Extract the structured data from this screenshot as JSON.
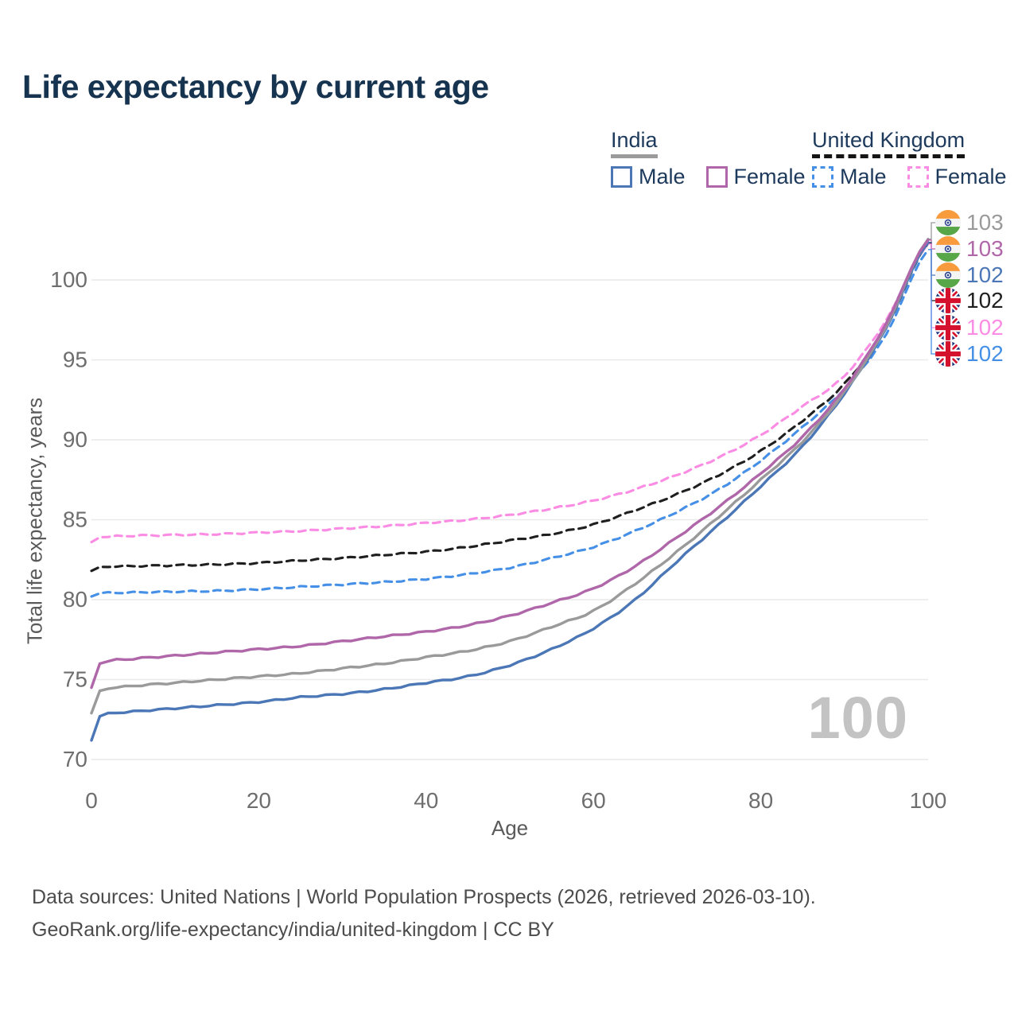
{
  "title": "Life expectancy by current age",
  "legend": {
    "india": {
      "label": "India",
      "male": "Male",
      "female": "Female"
    },
    "uk": {
      "label": "United Kingdom",
      "male": "Male",
      "female": "Female"
    }
  },
  "chart_data": {
    "type": "line",
    "title": "Life expectancy by current age",
    "xlabel": "Age",
    "ylabel": "Total life expectancy, years",
    "x_ticks": [
      0,
      20,
      40,
      60,
      80,
      100
    ],
    "y_ticks": [
      70,
      75,
      80,
      85,
      90,
      95,
      100
    ],
    "xlim": [
      0,
      100
    ],
    "ylim": [
      69.5,
      103.5
    ],
    "grid": "horizontal-only",
    "legend_position": "top-right",
    "age_ticker": "100",
    "x": [
      0,
      1,
      5,
      10,
      15,
      20,
      25,
      30,
      35,
      40,
      45,
      50,
      55,
      60,
      65,
      70,
      75,
      80,
      85,
      90,
      95,
      100
    ],
    "series": [
      {
        "name": "India Total",
        "country": "india",
        "sex": "total",
        "color": "#9a9a9a",
        "style": "solid",
        "end_label": "103",
        "values": [
          72.9,
          74.3,
          74.6,
          74.8,
          75.0,
          75.2,
          75.4,
          75.7,
          76.0,
          76.4,
          76.8,
          77.4,
          78.3,
          79.3,
          81.0,
          83.0,
          85.2,
          87.5,
          89.9,
          93.0,
          97.1,
          102.55
        ]
      },
      {
        "name": "India Female",
        "country": "india",
        "sex": "female",
        "color": "#b067a9",
        "style": "solid",
        "end_label": "103",
        "values": [
          74.5,
          76.0,
          76.3,
          76.5,
          76.7,
          76.9,
          77.1,
          77.4,
          77.7,
          78.0,
          78.4,
          79.0,
          79.8,
          80.7,
          82.1,
          83.9,
          85.8,
          87.9,
          90.2,
          93.2,
          97.3,
          102.5
        ]
      },
      {
        "name": "India Male",
        "country": "india",
        "sex": "male",
        "color": "#4b77b6",
        "style": "solid",
        "end_label": "102",
        "values": [
          71.2,
          72.7,
          73.0,
          73.2,
          73.4,
          73.6,
          73.9,
          74.1,
          74.4,
          74.8,
          75.2,
          75.9,
          76.9,
          78.2,
          80.0,
          82.4,
          84.7,
          87.1,
          89.6,
          92.9,
          97.0,
          102.35
        ]
      },
      {
        "name": "United Kingdom Total",
        "country": "uk",
        "sex": "total",
        "color": "#1f1f1f",
        "style": "dashed",
        "end_label": "102",
        "values": [
          81.8,
          82.05,
          82.1,
          82.15,
          82.2,
          82.3,
          82.45,
          82.6,
          82.8,
          83.0,
          83.3,
          83.7,
          84.1,
          84.7,
          85.6,
          86.6,
          87.8,
          89.3,
          91.2,
          93.5,
          97.0,
          102.3
        ]
      },
      {
        "name": "United Kingdom Female",
        "country": "uk",
        "sex": "female",
        "color": "#fb8ce4",
        "style": "dashed",
        "end_label": "102",
        "values": [
          83.6,
          83.9,
          84.0,
          84.05,
          84.1,
          84.2,
          84.3,
          84.45,
          84.6,
          84.8,
          85.0,
          85.3,
          85.7,
          86.2,
          86.9,
          87.8,
          88.9,
          90.3,
          92.1,
          94.0,
          97.5,
          102.25
        ]
      },
      {
        "name": "United Kingdom Male",
        "country": "uk",
        "sex": "male",
        "color": "#4590e6",
        "style": "dashed",
        "end_label": "102",
        "values": [
          80.2,
          80.4,
          80.45,
          80.5,
          80.55,
          80.65,
          80.8,
          80.95,
          81.1,
          81.3,
          81.6,
          82.0,
          82.6,
          83.3,
          84.3,
          85.5,
          86.9,
          88.7,
          90.8,
          93.2,
          96.6,
          101.9
        ]
      }
    ]
  },
  "footer": {
    "line1": "Data sources: United Nations | World Population Prospects (2026, retrieved 2026-03-10).",
    "line2": "GeoRank.org/life-expectancy/india/united-kingdom | CC BY"
  }
}
